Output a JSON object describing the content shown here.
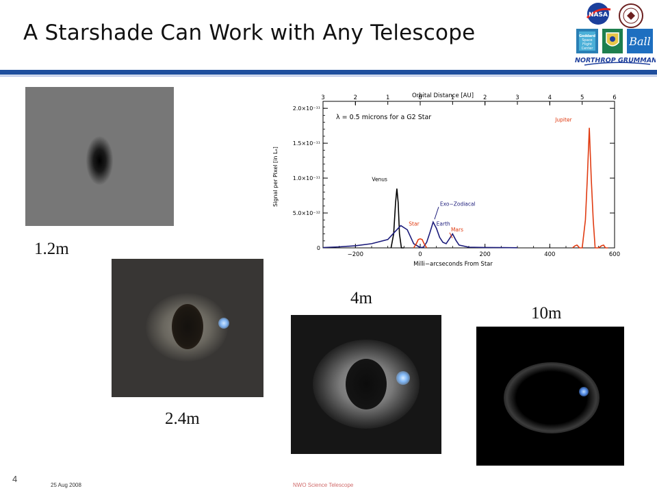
{
  "slide": {
    "title": "A Starshade Can Work with Any Telescope",
    "page_number": "4",
    "date": "25 Aug 2008",
    "footer_center": "NWO Science Telescope"
  },
  "logos": {
    "nasa": "NASA",
    "goddard": "Goddard Space Flight Center",
    "ball": "Ball",
    "northrop": "NORTHROP GRUMMAN"
  },
  "panels": [
    {
      "label": "1.2m"
    },
    {
      "label": "2.4m"
    },
    {
      "label": "4m"
    },
    {
      "label": "10m"
    }
  ],
  "colors": {
    "accent": "#1f4f9e",
    "black_series": "#000000",
    "navy_series": "#1a1a7a",
    "red_series": "#e03a10"
  },
  "chart_data": {
    "type": "line",
    "title": "Orbital Distance [AU]",
    "annotation": "λ = 0.5 microns for a G2 Star",
    "xlabel": "Milli−arcseconds From Star",
    "ylabel": "Signal per Pixel [in Lₑ]",
    "xlim": [
      -300,
      600
    ],
    "ylim": [
      0,
      2.1e-11
    ],
    "x_ticks": [
      "−200",
      "0",
      "200",
      "400",
      "600"
    ],
    "x_tick_values": [
      -200,
      0,
      200,
      400,
      600
    ],
    "top_ticks": [
      "3",
      "2",
      "1",
      "0",
      "1",
      "2",
      "3",
      "4",
      "5",
      "6"
    ],
    "top_tick_values": [
      -300,
      -200,
      -100,
      0,
      100,
      200,
      300,
      400,
      500,
      600
    ],
    "y_ticks": [
      "0",
      "5.0×10⁻¹²",
      "1.0×10⁻¹¹",
      "1.5×10⁻¹¹",
      "2.0×10⁻¹¹"
    ],
    "y_tick_values": [
      0,
      5e-12,
      1e-11,
      1.5e-11,
      2e-11
    ],
    "series": [
      {
        "name": "Venus",
        "color": "#000000",
        "x": [
          -90,
          -82,
          -76,
          -72,
          -68,
          -64,
          -58,
          -50
        ],
        "y": [
          0,
          2e-12,
          6.5e-12,
          8.5e-12,
          6.5e-12,
          2e-12,
          0,
          0
        ]
      },
      {
        "name": "Exo−Zodiacal",
        "color": "#1a1a7a",
        "x": [
          -300,
          -250,
          -200,
          -150,
          -100,
          -80,
          -60,
          -40,
          -20,
          0,
          10,
          20,
          30,
          40,
          50,
          60,
          70,
          80,
          90,
          100,
          110,
          120,
          150,
          200,
          250,
          300
        ],
        "y": [
          5e-14,
          1.5e-13,
          3e-13,
          6e-13,
          1.2e-12,
          2.2e-12,
          3.2e-12,
          2.6e-12,
          6e-13,
          5e-14,
          1e-13,
          8e-13,
          2.2e-12,
          3.7e-12,
          2.8e-12,
          1.5e-12,
          8e-13,
          6e-13,
          1.3e-12,
          2e-12,
          1.1e-12,
          4e-13,
          1e-13,
          6e-14,
          4e-14,
          2e-14
        ]
      },
      {
        "name": "Earth",
        "color": "#1a1a7a",
        "x": [],
        "y": []
      },
      {
        "name": "Star",
        "color": "#e03a10",
        "x": [
          -20,
          -12,
          -6,
          0,
          6,
          12,
          20
        ],
        "y": [
          0,
          6e-13,
          1.2e-12,
          1.3e-12,
          1.2e-12,
          6e-13,
          0
        ]
      },
      {
        "name": "Mars",
        "color": "#e03a10",
        "x": [],
        "y": []
      },
      {
        "name": "Jupiter",
        "color": "#e03a10",
        "x": [
          470,
          478,
          484,
          492,
          500,
          510,
          516,
          522,
          528,
          534,
          540,
          550,
          560,
          566,
          572,
          580
        ],
        "y": [
          0,
          3e-13,
          4e-13,
          0,
          0,
          4e-12,
          1e-11,
          1.72e-11,
          1e-11,
          4e-12,
          0,
          0,
          3e-13,
          4e-13,
          0,
          0
        ]
      }
    ]
  }
}
